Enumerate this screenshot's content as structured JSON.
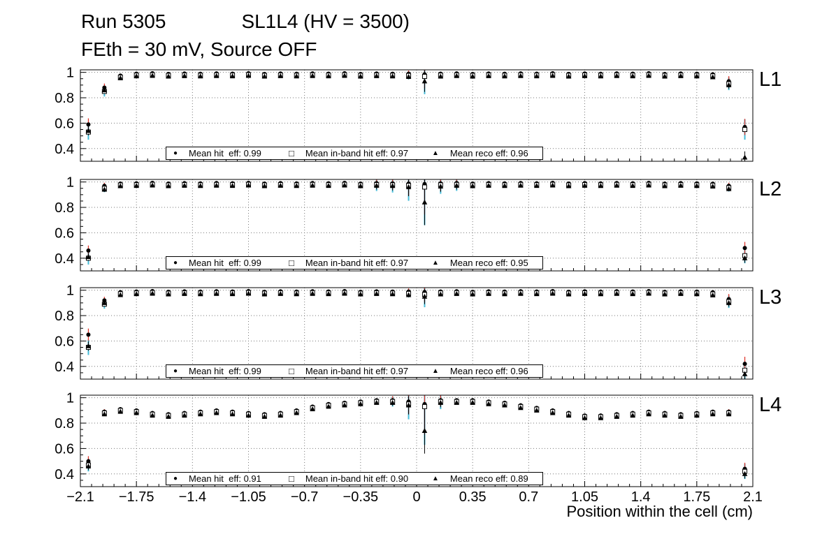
{
  "title": {
    "run": "Run 5305",
    "config": "SL1L4 (HV = 3500)",
    "subtitle": "FEth = 30 mV, Source OFF"
  },
  "markers": {
    "hit": "●",
    "inband": "□",
    "reco": "▲"
  },
  "chart_data": {
    "type": "scatter",
    "grid": true,
    "legend_position": "bottom-center",
    "x_axis": {
      "label": "Position within the cell (cm)",
      "range": [
        -2.1,
        2.1
      ],
      "tick_values": [
        -2.1,
        -1.75,
        -1.4,
        -1.05,
        -0.7,
        -0.35,
        0,
        0.35,
        0.7,
        1.05,
        1.4,
        1.75,
        2.1
      ],
      "tick_labels": [
        "−2.1",
        "−1.75",
        "−1.4",
        "−1.05",
        "−0.7",
        "−0.35",
        "0",
        "0.35",
        "0.7",
        "1.05",
        "1.4",
        "1.75",
        "2.1"
      ]
    },
    "y_axis": {
      "range": [
        0.3,
        1.02
      ],
      "tick_values": [
        0.4,
        0.6,
        0.8,
        1
      ],
      "tick_labels": [
        "0.4",
        "0.6",
        "0.8",
        "1"
      ]
    },
    "colors": {
      "marker": "#000000",
      "hit_error": "#e0382e",
      "inband_error": "#45bcd9"
    },
    "series": [
      {
        "name": "Mean hit eff",
        "marker": "filled-circle"
      },
      {
        "name": "Mean in-band hit eff",
        "marker": "open-square"
      },
      {
        "name": "Mean reco eff",
        "marker": "filled-triangle"
      }
    ],
    "x": [
      -2.05,
      -1.95,
      -1.85,
      -1.75,
      -1.65,
      -1.55,
      -1.45,
      -1.35,
      -1.25,
      -1.15,
      -1.05,
      -0.95,
      -0.85,
      -0.75,
      -0.65,
      -0.55,
      -0.45,
      -0.35,
      -0.25,
      -0.15,
      -0.05,
      0.05,
      0.15,
      0.25,
      0.35,
      0.45,
      0.55,
      0.65,
      0.75,
      0.85,
      0.95,
      1.05,
      1.15,
      1.25,
      1.35,
      1.45,
      1.55,
      1.65,
      1.75,
      1.85,
      1.95,
      2.05
    ],
    "panels": [
      {
        "label": "L1",
        "legend": {
          "hit": "Mean hit  eff: 0.99",
          "inband": "Mean in-band hit eff: 0.97",
          "reco": "Mean reco eff: 0.96"
        },
        "hit": [
          0.59,
          0.88,
          0.975,
          0.99,
          0.993,
          0.988,
          0.991,
          0.989,
          0.992,
          0.99,
          0.993,
          0.988,
          0.991,
          0.989,
          0.992,
          0.99,
          0.993,
          0.988,
          0.991,
          0.989,
          0.99,
          0.985,
          0.99,
          0.992,
          0.988,
          0.991,
          0.989,
          0.992,
          0.99,
          0.993,
          0.988,
          0.991,
          0.989,
          0.992,
          0.99,
          0.993,
          0.988,
          0.991,
          0.989,
          0.985,
          0.93,
          0.57
        ],
        "inband": [
          0.53,
          0.85,
          0.962,
          0.978,
          0.981,
          0.976,
          0.979,
          0.977,
          0.98,
          0.978,
          0.981,
          0.976,
          0.979,
          0.977,
          0.98,
          0.978,
          0.981,
          0.976,
          0.979,
          0.977,
          0.975,
          0.968,
          0.978,
          0.98,
          0.976,
          0.979,
          0.977,
          0.98,
          0.978,
          0.981,
          0.976,
          0.979,
          0.977,
          0.98,
          0.978,
          0.981,
          0.976,
          0.979,
          0.977,
          0.972,
          0.91,
          0.55
        ],
        "reco": [
          0.54,
          0.86,
          0.955,
          0.97,
          0.973,
          0.968,
          0.971,
          0.969,
          0.972,
          0.97,
          0.973,
          0.968,
          0.971,
          0.969,
          0.972,
          0.97,
          0.973,
          0.968,
          0.971,
          0.969,
          0.965,
          0.93,
          0.968,
          0.972,
          0.968,
          0.971,
          0.969,
          0.972,
          0.97,
          0.973,
          0.968,
          0.971,
          0.969,
          0.972,
          0.97,
          0.973,
          0.968,
          0.971,
          0.969,
          0.962,
          0.9,
          0.33
        ],
        "err": [
          0.06,
          0.04,
          0.015,
          0.012,
          0.012,
          0.012,
          0.012,
          0.012,
          0.012,
          0.012,
          0.012,
          0.012,
          0.012,
          0.012,
          0.012,
          0.012,
          0.012,
          0.012,
          0.012,
          0.012,
          0.03,
          0.14,
          0.012,
          0.012,
          0.012,
          0.012,
          0.012,
          0.012,
          0.012,
          0.012,
          0.012,
          0.012,
          0.012,
          0.012,
          0.012,
          0.012,
          0.012,
          0.012,
          0.012,
          0.02,
          0.05,
          0.08
        ]
      },
      {
        "label": "L2",
        "legend": {
          "hit": "Mean hit  eff: 0.99",
          "inband": "Mean in-band hit eff: 0.97",
          "reco": "Mean reco eff: 0.95"
        },
        "hit": [
          0.46,
          0.97,
          0.988,
          0.99,
          0.993,
          0.988,
          0.991,
          0.989,
          0.992,
          0.99,
          0.993,
          0.988,
          0.991,
          0.989,
          0.992,
          0.99,
          0.993,
          0.988,
          0.991,
          0.989,
          0.988,
          0.984,
          0.989,
          0.992,
          0.988,
          0.991,
          0.989,
          0.992,
          0.99,
          0.993,
          0.988,
          0.991,
          0.989,
          0.992,
          0.99,
          0.993,
          0.988,
          0.991,
          0.989,
          0.987,
          0.97,
          0.48
        ],
        "inband": [
          0.4,
          0.95,
          0.976,
          0.978,
          0.981,
          0.976,
          0.979,
          0.977,
          0.98,
          0.978,
          0.981,
          0.976,
          0.979,
          0.977,
          0.98,
          0.978,
          0.981,
          0.976,
          0.979,
          0.977,
          0.972,
          0.96,
          0.977,
          0.98,
          0.976,
          0.979,
          0.977,
          0.98,
          0.978,
          0.981,
          0.976,
          0.979,
          0.977,
          0.98,
          0.978,
          0.981,
          0.976,
          0.979,
          0.977,
          0.974,
          0.955,
          0.42
        ],
        "reco": [
          0.41,
          0.94,
          0.968,
          0.97,
          0.973,
          0.968,
          0.971,
          0.969,
          0.972,
          0.97,
          0.973,
          0.968,
          0.971,
          0.969,
          0.972,
          0.97,
          0.973,
          0.968,
          0.971,
          0.969,
          0.96,
          0.84,
          0.965,
          0.971,
          0.968,
          0.971,
          0.969,
          0.972,
          0.97,
          0.973,
          0.968,
          0.971,
          0.969,
          0.972,
          0.97,
          0.973,
          0.968,
          0.971,
          0.969,
          0.965,
          0.945,
          0.4
        ],
        "err": [
          0.05,
          0.03,
          0.014,
          0.012,
          0.012,
          0.012,
          0.012,
          0.012,
          0.012,
          0.012,
          0.012,
          0.012,
          0.012,
          0.012,
          0.012,
          0.012,
          0.012,
          0.012,
          0.05,
          0.06,
          0.12,
          0.3,
          0.07,
          0.05,
          0.012,
          0.012,
          0.012,
          0.012,
          0.012,
          0.012,
          0.012,
          0.012,
          0.012,
          0.012,
          0.012,
          0.012,
          0.012,
          0.012,
          0.012,
          0.015,
          0.03,
          0.06
        ]
      },
      {
        "label": "L3",
        "legend": {
          "hit": "Mean hit  eff: 0.99",
          "inband": "Mean in-band hit eff: 0.97",
          "reco": "Mean reco eff: 0.96"
        },
        "hit": [
          0.65,
          0.92,
          0.985,
          0.99,
          0.993,
          0.988,
          0.991,
          0.989,
          0.992,
          0.99,
          0.993,
          0.988,
          0.991,
          0.989,
          0.992,
          0.99,
          0.993,
          0.988,
          0.991,
          0.989,
          0.99,
          0.986,
          0.99,
          0.992,
          0.988,
          0.991,
          0.989,
          0.992,
          0.99,
          0.993,
          0.988,
          0.991,
          0.989,
          0.992,
          0.99,
          0.993,
          0.988,
          0.991,
          0.989,
          0.984,
          0.93,
          0.42
        ],
        "inband": [
          0.55,
          0.89,
          0.972,
          0.978,
          0.981,
          0.976,
          0.979,
          0.977,
          0.98,
          0.978,
          0.981,
          0.976,
          0.979,
          0.977,
          0.98,
          0.978,
          0.981,
          0.976,
          0.979,
          0.977,
          0.974,
          0.966,
          0.978,
          0.98,
          0.976,
          0.979,
          0.977,
          0.98,
          0.978,
          0.981,
          0.976,
          0.979,
          0.977,
          0.98,
          0.978,
          0.981,
          0.976,
          0.979,
          0.977,
          0.97,
          0.91,
          0.37
        ],
        "reco": [
          0.56,
          0.9,
          0.962,
          0.97,
          0.973,
          0.968,
          0.971,
          0.969,
          0.972,
          0.97,
          0.973,
          0.968,
          0.971,
          0.969,
          0.972,
          0.97,
          0.973,
          0.968,
          0.971,
          0.969,
          0.962,
          0.95,
          0.968,
          0.971,
          0.968,
          0.971,
          0.969,
          0.972,
          0.97,
          0.973,
          0.968,
          0.971,
          0.969,
          0.972,
          0.97,
          0.973,
          0.968,
          0.971,
          0.969,
          0.96,
          0.9,
          0.34
        ],
        "err": [
          0.06,
          0.035,
          0.014,
          0.012,
          0.012,
          0.012,
          0.012,
          0.012,
          0.012,
          0.012,
          0.012,
          0.012,
          0.012,
          0.012,
          0.012,
          0.012,
          0.012,
          0.012,
          0.012,
          0.012,
          0.03,
          0.1,
          0.012,
          0.012,
          0.012,
          0.012,
          0.012,
          0.012,
          0.012,
          0.012,
          0.012,
          0.012,
          0.012,
          0.012,
          0.012,
          0.012,
          0.012,
          0.012,
          0.012,
          0.02,
          0.05,
          0.07
        ]
      },
      {
        "label": "L4",
        "legend": {
          "hit": "Mean hit  eff: 0.91",
          "inband": "Mean in-band hit eff: 0.90",
          "reco": "Mean reco eff: 0.89"
        },
        "hit": [
          0.5,
          0.89,
          0.91,
          0.9,
          0.88,
          0.87,
          0.88,
          0.89,
          0.9,
          0.89,
          0.88,
          0.87,
          0.88,
          0.9,
          0.93,
          0.95,
          0.96,
          0.97,
          0.98,
          0.98,
          0.97,
          0.95,
          0.98,
          0.98,
          0.98,
          0.97,
          0.96,
          0.94,
          0.92,
          0.9,
          0.88,
          0.86,
          0.86,
          0.87,
          0.88,
          0.89,
          0.88,
          0.87,
          0.88,
          0.89,
          0.89,
          0.44
        ],
        "inband": [
          0.47,
          0.88,
          0.9,
          0.89,
          0.87,
          0.86,
          0.87,
          0.88,
          0.89,
          0.88,
          0.87,
          0.86,
          0.87,
          0.89,
          0.92,
          0.94,
          0.95,
          0.96,
          0.97,
          0.97,
          0.95,
          0.93,
          0.97,
          0.97,
          0.97,
          0.96,
          0.95,
          0.93,
          0.91,
          0.89,
          0.87,
          0.85,
          0.85,
          0.86,
          0.87,
          0.88,
          0.87,
          0.86,
          0.87,
          0.88,
          0.88,
          0.42
        ],
        "reco": [
          0.46,
          0.87,
          0.89,
          0.88,
          0.86,
          0.85,
          0.86,
          0.87,
          0.88,
          0.87,
          0.86,
          0.85,
          0.86,
          0.88,
          0.91,
          0.93,
          0.94,
          0.95,
          0.96,
          0.96,
          0.94,
          0.74,
          0.96,
          0.96,
          0.96,
          0.95,
          0.94,
          0.92,
          0.9,
          0.88,
          0.86,
          0.84,
          0.84,
          0.85,
          0.86,
          0.87,
          0.86,
          0.85,
          0.86,
          0.87,
          0.87,
          0.4
        ],
        "err": [
          0.05,
          0.025,
          0.015,
          0.015,
          0.015,
          0.015,
          0.015,
          0.015,
          0.015,
          0.015,
          0.015,
          0.015,
          0.015,
          0.015,
          0.015,
          0.015,
          0.015,
          0.015,
          0.015,
          0.04,
          0.12,
          0.3,
          0.06,
          0.015,
          0.015,
          0.015,
          0.015,
          0.015,
          0.015,
          0.015,
          0.015,
          0.015,
          0.015,
          0.015,
          0.015,
          0.015,
          0.015,
          0.015,
          0.015,
          0.015,
          0.025,
          0.06
        ]
      }
    ]
  }
}
